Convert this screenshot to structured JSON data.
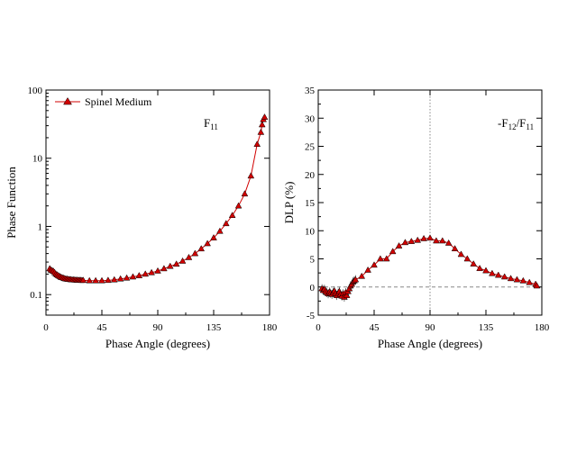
{
  "chart_data": [
    {
      "type": "line",
      "xlabel": "Phase Angle (degrees)",
      "ylabel": "Phase Function",
      "xlim": [
        0,
        180
      ],
      "ylim": [
        0.05,
        100
      ],
      "yscale": "log",
      "grid": false,
      "xticks": [
        0,
        45,
        90,
        135,
        180
      ],
      "yticks": [
        0.1,
        1,
        10,
        100
      ],
      "ytick_labels": [
        "0.1",
        "1",
        "10",
        "100"
      ],
      "annotation": {
        "main": "F",
        "sub": "11"
      },
      "legend": {
        "position": "top-left",
        "entries": [
          "Spinel Medium"
        ]
      },
      "series": [
        {
          "name": "Spinel Medium",
          "color": "#d10000",
          "marker": "triangle",
          "x": [
            3,
            4,
            5,
            6,
            7,
            8,
            9,
            10,
            11,
            12,
            13,
            14,
            15,
            16,
            17,
            18,
            19,
            20,
            21,
            22,
            23,
            24,
            25,
            26,
            27,
            28,
            29,
            30,
            35,
            40,
            45,
            50,
            55,
            60,
            65,
            70,
            75,
            80,
            85,
            90,
            95,
            100,
            105,
            110,
            115,
            120,
            125,
            130,
            135,
            140,
            145,
            150,
            155,
            160,
            165,
            170,
            173,
            174,
            175,
            176
          ],
          "y": [
            0.24,
            0.23,
            0.225,
            0.22,
            0.21,
            0.2,
            0.195,
            0.19,
            0.185,
            0.18,
            0.178,
            0.175,
            0.172,
            0.17,
            0.169,
            0.168,
            0.167,
            0.166,
            0.165,
            0.165,
            0.164,
            0.164,
            0.163,
            0.163,
            0.163,
            0.162,
            0.162,
            0.162,
            0.16,
            0.16,
            0.16,
            0.162,
            0.165,
            0.17,
            0.175,
            0.182,
            0.19,
            0.2,
            0.21,
            0.222,
            0.24,
            0.26,
            0.28,
            0.31,
            0.35,
            0.4,
            0.47,
            0.56,
            0.68,
            0.85,
            1.1,
            1.45,
            2.0,
            3.0,
            5.5,
            16,
            24,
            31,
            37,
            40
          ]
        }
      ]
    },
    {
      "type": "line",
      "xlabel": "Phase Angle (degrees)",
      "ylabel": "DLP (%)",
      "xlim": [
        0,
        180
      ],
      "ylim": [
        -5,
        35
      ],
      "grid": false,
      "xticks": [
        0,
        45,
        90,
        135,
        180
      ],
      "yticks": [
        -5,
        0,
        5,
        10,
        15,
        20,
        25,
        30,
        35
      ],
      "ytick_labels": [
        "-5",
        "0",
        "5",
        "10",
        "15",
        "20",
        "25",
        "30",
        "35"
      ],
      "reference_lines": {
        "vertical_x": 90,
        "horizontal_y": 0
      },
      "annotation": {
        "main": "-F",
        "sub": "12",
        "main2": "/F",
        "sub2": "11"
      },
      "series": [
        {
          "name": "Spinel Medium",
          "color": "#d10000",
          "marker": "triangle",
          "x": [
            3,
            4,
            5,
            6,
            7,
            8,
            9,
            10,
            11,
            12,
            13,
            14,
            15,
            16,
            17,
            18,
            19,
            20,
            21,
            22,
            23,
            24,
            25,
            26,
            27,
            28,
            29,
            30,
            35,
            40,
            45,
            50,
            55,
            60,
            65,
            70,
            75,
            80,
            85,
            90,
            95,
            100,
            105,
            110,
            115,
            120,
            125,
            130,
            135,
            140,
            145,
            150,
            155,
            160,
            165,
            170,
            175,
            176
          ],
          "y": [
            -0.3,
            -0.6,
            -0.4,
            -0.8,
            -1.0,
            -1.2,
            -0.9,
            -1.1,
            -1.3,
            -1.0,
            -0.7,
            -1.2,
            -1.5,
            -1.1,
            -0.8,
            -1.3,
            -1.6,
            -1.2,
            -1.8,
            -1.0,
            -1.5,
            -0.8,
            -0.3,
            0.2,
            0.5,
            0.9,
            1.1,
            1.3,
            1.9,
            3.0,
            3.9,
            5.0,
            5.0,
            6.3,
            7.3,
            7.9,
            8.1,
            8.3,
            8.6,
            8.7,
            8.2,
            8.2,
            7.8,
            6.8,
            5.8,
            5.0,
            4.1,
            3.3,
            2.9,
            2.4,
            2.1,
            1.8,
            1.5,
            1.3,
            1.1,
            0.8,
            0.5,
            0.2
          ]
        }
      ]
    }
  ]
}
